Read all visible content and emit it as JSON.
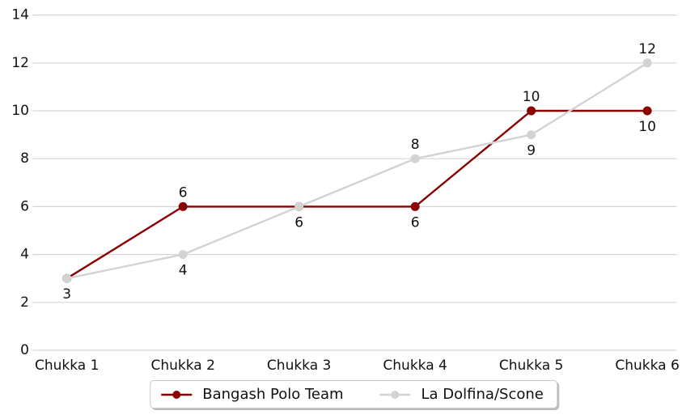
{
  "chart_data": {
    "type": "line",
    "title": "",
    "xlabel": "",
    "ylabel": "",
    "categories": [
      "Chukka 1",
      "Chukka 2",
      "Chukka 3",
      "Chukka 4",
      "Chukka 5",
      "Chukka 6"
    ],
    "series": [
      {
        "name": "Bangash Polo Team",
        "color": "#8B0000",
        "values": [
          3,
          6,
          6,
          6,
          10,
          10
        ],
        "label_positions": [
          "none",
          "above",
          "none",
          "below",
          "above",
          "below"
        ]
      },
      {
        "name": "La Dolfina/Scone",
        "color": "#D3D3D3",
        "values": [
          3,
          4,
          6,
          8,
          9,
          12
        ],
        "label_positions": [
          "below",
          "below",
          "below",
          "above",
          "below",
          "above"
        ]
      }
    ],
    "ylim": [
      0,
      14
    ],
    "yticks": [
      0,
      2,
      4,
      6,
      8,
      10,
      12,
      14
    ],
    "grid": true,
    "legend_position": "bottom-center"
  },
  "colors": {
    "grid": "#d6d6d6",
    "text": "#111111",
    "background": "#ffffff"
  }
}
